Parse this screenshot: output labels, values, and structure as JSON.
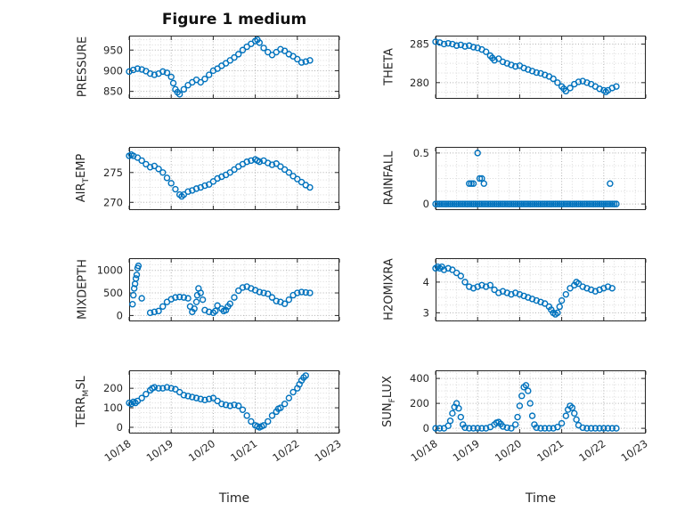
{
  "figure": {
    "title": "Figure 1 medium",
    "xlabel": "Time",
    "xlim": [
      0,
      5
    ],
    "xticks": [
      0,
      1,
      2,
      3,
      4,
      5
    ],
    "xticklabels": [
      "10/18",
      "10/19",
      "10/20",
      "10/21",
      "10/22",
      "10/23"
    ],
    "colors": {
      "marker": "#0072BD",
      "axis": "#262626",
      "grid": "#b0b0b0",
      "minor_grid": "#d9d9d9",
      "background": "#ffffff"
    }
  },
  "chart_data": [
    {
      "type": "scatter",
      "ylabel": "PRESSURE",
      "yticks": [
        850,
        900,
        950
      ],
      "ylim": [
        832,
        985
      ],
      "show_xticklabels": false,
      "x": [
        0,
        0.1,
        0.2,
        0.3,
        0.4,
        0.5,
        0.6,
        0.7,
        0.8,
        0.9,
        1.0,
        1.05,
        1.1,
        1.15,
        1.2,
        1.3,
        1.4,
        1.5,
        1.6,
        1.7,
        1.8,
        1.9,
        2.0,
        2.1,
        2.2,
        2.3,
        2.4,
        2.5,
        2.6,
        2.7,
        2.8,
        2.9,
        3.0,
        3.05,
        3.1,
        3.2,
        3.3,
        3.4,
        3.5,
        3.6,
        3.7,
        3.8,
        3.9,
        4.0,
        4.1,
        4.2,
        4.3
      ],
      "y": [
        898,
        902,
        905,
        903,
        899,
        893,
        890,
        893,
        898,
        895,
        885,
        870,
        855,
        848,
        843,
        855,
        865,
        872,
        878,
        872,
        880,
        890,
        900,
        905,
        912,
        918,
        925,
        932,
        940,
        950,
        958,
        965,
        972,
        975,
        968,
        955,
        945,
        938,
        945,
        952,
        948,
        940,
        935,
        928,
        920,
        922,
        925
      ]
    },
    {
      "type": "scatter",
      "ylabel": "THETA",
      "yticks": [
        280,
        285
      ],
      "ylim": [
        277.9,
        286.1
      ],
      "show_xticklabels": false,
      "x": [
        0,
        0.1,
        0.2,
        0.3,
        0.4,
        0.5,
        0.6,
        0.7,
        0.8,
        0.9,
        1.0,
        1.1,
        1.2,
        1.3,
        1.35,
        1.4,
        1.5,
        1.6,
        1.7,
        1.8,
        1.9,
        2.0,
        2.1,
        2.2,
        2.3,
        2.4,
        2.5,
        2.6,
        2.7,
        2.8,
        2.9,
        3.0,
        3.05,
        3.1,
        3.2,
        3.3,
        3.4,
        3.5,
        3.6,
        3.7,
        3.8,
        3.9,
        4.0,
        4.05,
        4.1,
        4.2,
        4.3
      ],
      "y": [
        285.3,
        285.2,
        285.0,
        285.1,
        285.0,
        284.8,
        284.9,
        284.7,
        284.8,
        284.6,
        284.5,
        284.3,
        284.0,
        283.5,
        283.2,
        282.9,
        283.1,
        282.7,
        282.5,
        282.3,
        282.1,
        282.2,
        281.9,
        281.7,
        281.5,
        281.3,
        281.2,
        281.0,
        280.8,
        280.5,
        280.0,
        279.5,
        279.2,
        278.9,
        279.3,
        279.8,
        280.1,
        280.2,
        280.0,
        279.8,
        279.5,
        279.2,
        279.0,
        278.8,
        279.0,
        279.3,
        279.5
      ]
    },
    {
      "type": "scatter",
      "ylabel": "AIR_TEMP",
      "yticks": [
        270,
        275
      ],
      "ylim": [
        268.7,
        279.3
      ],
      "show_xticklabels": false,
      "x": [
        0,
        0.05,
        0.1,
        0.2,
        0.3,
        0.4,
        0.5,
        0.6,
        0.7,
        0.8,
        0.9,
        1.0,
        1.1,
        1.2,
        1.25,
        1.3,
        1.4,
        1.5,
        1.6,
        1.7,
        1.8,
        1.9,
        2.0,
        2.1,
        2.2,
        2.3,
        2.4,
        2.5,
        2.6,
        2.7,
        2.8,
        2.9,
        3.0,
        3.05,
        3.1,
        3.2,
        3.3,
        3.4,
        3.5,
        3.6,
        3.7,
        3.8,
        3.9,
        4.0,
        4.1,
        4.2,
        4.3
      ],
      "y": [
        277.8,
        278.0,
        277.8,
        277.5,
        277.0,
        276.4,
        275.9,
        276.1,
        275.6,
        275.0,
        274.1,
        273.2,
        272.2,
        271.3,
        271.0,
        271.3,
        271.8,
        272.0,
        272.3,
        272.5,
        272.8,
        273.0,
        273.5,
        274.0,
        274.3,
        274.6,
        275.0,
        275.5,
        276.0,
        276.4,
        276.8,
        277.0,
        277.2,
        277.0,
        276.8,
        277.0,
        276.6,
        276.3,
        276.5,
        276.0,
        275.5,
        275.0,
        274.4,
        273.9,
        273.4,
        272.9,
        272.5
      ]
    },
    {
      "type": "scatter",
      "ylabel": "RAINFALL",
      "yticks": [
        0,
        0.5
      ],
      "ylim": [
        -0.06,
        0.56
      ],
      "show_xticklabels": false,
      "x": [
        0,
        0.05,
        0.1,
        0.15,
        0.2,
        0.25,
        0.3,
        0.35,
        0.4,
        0.45,
        0.5,
        0.55,
        0.6,
        0.65,
        0.7,
        0.75,
        0.8,
        0.85,
        0.9,
        0.95,
        1,
        1.05,
        1.1,
        1.15,
        1.2,
        1.25,
        1.3,
        1.35,
        1.4,
        1.45,
        1.5,
        1.55,
        1.6,
        1.65,
        1.7,
        1.75,
        1.8,
        1.85,
        1.9,
        1.95,
        2,
        2.05,
        2.1,
        2.15,
        2.2,
        2.25,
        2.3,
        2.35,
        2.4,
        2.45,
        2.5,
        2.55,
        2.6,
        2.65,
        2.7,
        2.75,
        2.8,
        2.85,
        2.9,
        2.95,
        3,
        3.05,
        3.1,
        3.15,
        3.2,
        3.25,
        3.3,
        3.35,
        3.4,
        3.45,
        3.5,
        3.55,
        3.6,
        3.65,
        3.7,
        3.75,
        3.8,
        3.85,
        3.9,
        3.95,
        4,
        4.05,
        4.1,
        4.15,
        4.2,
        4.25,
        4.3,
        0.8,
        0.85,
        0.9,
        1.0,
        1.05,
        1.1,
        1.15,
        4.15
      ],
      "y": [
        0,
        0,
        0,
        0,
        0,
        0,
        0,
        0,
        0,
        0,
        0,
        0,
        0,
        0,
        0,
        0,
        0,
        0,
        0,
        0,
        0,
        0,
        0,
        0,
        0,
        0,
        0,
        0,
        0,
        0,
        0,
        0,
        0,
        0,
        0,
        0,
        0,
        0,
        0,
        0,
        0,
        0,
        0,
        0,
        0,
        0,
        0,
        0,
        0,
        0,
        0,
        0,
        0,
        0,
        0,
        0,
        0,
        0,
        0,
        0,
        0,
        0,
        0,
        0,
        0,
        0,
        0,
        0,
        0,
        0,
        0,
        0,
        0,
        0,
        0,
        0,
        0,
        0,
        0,
        0,
        0,
        0,
        0,
        0,
        0,
        0,
        0,
        0.2,
        0.2,
        0.2,
        0.5,
        0.25,
        0.25,
        0.2,
        0.2
      ]
    },
    {
      "type": "scatter",
      "ylabel": "MIXDEPTH",
      "yticks": [
        0,
        500,
        1000
      ],
      "ylim": [
        -130,
        1270
      ],
      "show_xticklabels": false,
      "x": [
        0.08,
        0.1,
        0.12,
        0.14,
        0.16,
        0.18,
        0.2,
        0.22,
        0.3,
        0.5,
        0.6,
        0.7,
        0.8,
        0.9,
        1.0,
        1.1,
        1.2,
        1.3,
        1.4,
        1.45,
        1.5,
        1.55,
        1.6,
        1.62,
        1.65,
        1.7,
        1.75,
        1.8,
        1.9,
        2.0,
        2.05,
        2.1,
        2.2,
        2.25,
        2.3,
        2.35,
        2.4,
        2.5,
        2.6,
        2.7,
        2.8,
        2.9,
        3.0,
        3.1,
        3.2,
        3.3,
        3.4,
        3.5,
        3.6,
        3.7,
        3.8,
        3.9,
        4.0,
        4.1,
        4.2,
        4.3
      ],
      "y": [
        250,
        450,
        600,
        700,
        820,
        900,
        1050,
        1100,
        380,
        60,
        80,
        100,
        200,
        300,
        360,
        400,
        410,
        400,
        380,
        200,
        80,
        150,
        300,
        450,
        600,
        500,
        350,
        120,
        80,
        60,
        100,
        220,
        150,
        100,
        120,
        200,
        260,
        400,
        550,
        620,
        640,
        600,
        560,
        520,
        500,
        480,
        400,
        320,
        300,
        260,
        350,
        450,
        500,
        520,
        510,
        500
      ]
    },
    {
      "type": "scatter",
      "ylabel": "H2OMIXRA",
      "yticks": [
        3,
        4
      ],
      "ylim": [
        2.72,
        4.78
      ],
      "show_xticklabels": false,
      "x": [
        0,
        0.05,
        0.1,
        0.15,
        0.2,
        0.3,
        0.4,
        0.5,
        0.6,
        0.7,
        0.8,
        0.9,
        1.0,
        1.1,
        1.2,
        1.3,
        1.4,
        1.5,
        1.6,
        1.7,
        1.8,
        1.9,
        2.0,
        2.1,
        2.2,
        2.3,
        2.4,
        2.5,
        2.6,
        2.7,
        2.75,
        2.8,
        2.85,
        2.9,
        2.95,
        3.0,
        3.1,
        3.2,
        3.3,
        3.35,
        3.4,
        3.5,
        3.6,
        3.7,
        3.8,
        3.9,
        4.0,
        4.1,
        4.2
      ],
      "y": [
        4.45,
        4.5,
        4.45,
        4.5,
        4.4,
        4.45,
        4.4,
        4.3,
        4.2,
        4.0,
        3.85,
        3.8,
        3.85,
        3.9,
        3.85,
        3.9,
        3.75,
        3.65,
        3.7,
        3.65,
        3.6,
        3.65,
        3.6,
        3.55,
        3.5,
        3.45,
        3.4,
        3.35,
        3.3,
        3.2,
        3.1,
        3.0,
        2.95,
        3.0,
        3.2,
        3.4,
        3.6,
        3.8,
        3.9,
        4.0,
        3.95,
        3.85,
        3.8,
        3.75,
        3.7,
        3.75,
        3.8,
        3.85,
        3.8
      ]
    },
    {
      "type": "scatter",
      "ylabel": "TERR_MSL",
      "yticks": [
        0,
        100,
        200
      ],
      "ylim": [
        -32,
        292
      ],
      "show_xticklabels": true,
      "x": [
        0,
        0.05,
        0.1,
        0.15,
        0.2,
        0.3,
        0.4,
        0.5,
        0.55,
        0.6,
        0.7,
        0.8,
        0.9,
        1.0,
        1.1,
        1.2,
        1.3,
        1.4,
        1.5,
        1.6,
        1.7,
        1.8,
        1.9,
        2.0,
        2.1,
        2.2,
        2.3,
        2.4,
        2.5,
        2.6,
        2.7,
        2.8,
        2.9,
        3.0,
        3.05,
        3.1,
        3.15,
        3.2,
        3.3,
        3.4,
        3.5,
        3.55,
        3.6,
        3.7,
        3.8,
        3.9,
        4.0,
        4.05,
        4.1,
        4.15,
        4.2
      ],
      "y": [
        125,
        120,
        130,
        125,
        135,
        150,
        170,
        190,
        200,
        205,
        200,
        200,
        205,
        200,
        195,
        180,
        165,
        160,
        155,
        150,
        145,
        140,
        145,
        150,
        135,
        120,
        115,
        110,
        115,
        110,
        90,
        60,
        30,
        10,
        5,
        0,
        5,
        10,
        30,
        60,
        80,
        95,
        100,
        120,
        150,
        180,
        200,
        220,
        240,
        255,
        265
      ]
    },
    {
      "type": "scatter",
      "ylabel": "SUN_FLUX",
      "yticks": [
        0,
        200,
        400
      ],
      "ylim": [
        -42,
        465
      ],
      "show_xticklabels": true,
      "x": [
        0,
        0.1,
        0.2,
        0.3,
        0.35,
        0.4,
        0.45,
        0.5,
        0.55,
        0.6,
        0.65,
        0.7,
        0.8,
        0.9,
        1.0,
        1.1,
        1.2,
        1.3,
        1.4,
        1.45,
        1.5,
        1.55,
        1.6,
        1.7,
        1.8,
        1.9,
        1.95,
        2.0,
        2.05,
        2.1,
        2.15,
        2.2,
        2.25,
        2.3,
        2.35,
        2.4,
        2.5,
        2.6,
        2.7,
        2.8,
        2.9,
        3.0,
        3.1,
        3.15,
        3.2,
        3.25,
        3.3,
        3.35,
        3.4,
        3.5,
        3.6,
        3.7,
        3.8,
        3.9,
        4.0,
        4.1,
        4.2,
        4.3
      ],
      "y": [
        0,
        0,
        0,
        20,
        60,
        120,
        170,
        200,
        160,
        90,
        30,
        5,
        0,
        0,
        0,
        0,
        0,
        10,
        30,
        45,
        50,
        35,
        15,
        5,
        0,
        30,
        90,
        180,
        260,
        330,
        345,
        300,
        200,
        100,
        30,
        5,
        0,
        0,
        0,
        0,
        10,
        40,
        100,
        150,
        180,
        165,
        120,
        70,
        25,
        5,
        0,
        0,
        0,
        0,
        0,
        0,
        0,
        0
      ]
    }
  ]
}
